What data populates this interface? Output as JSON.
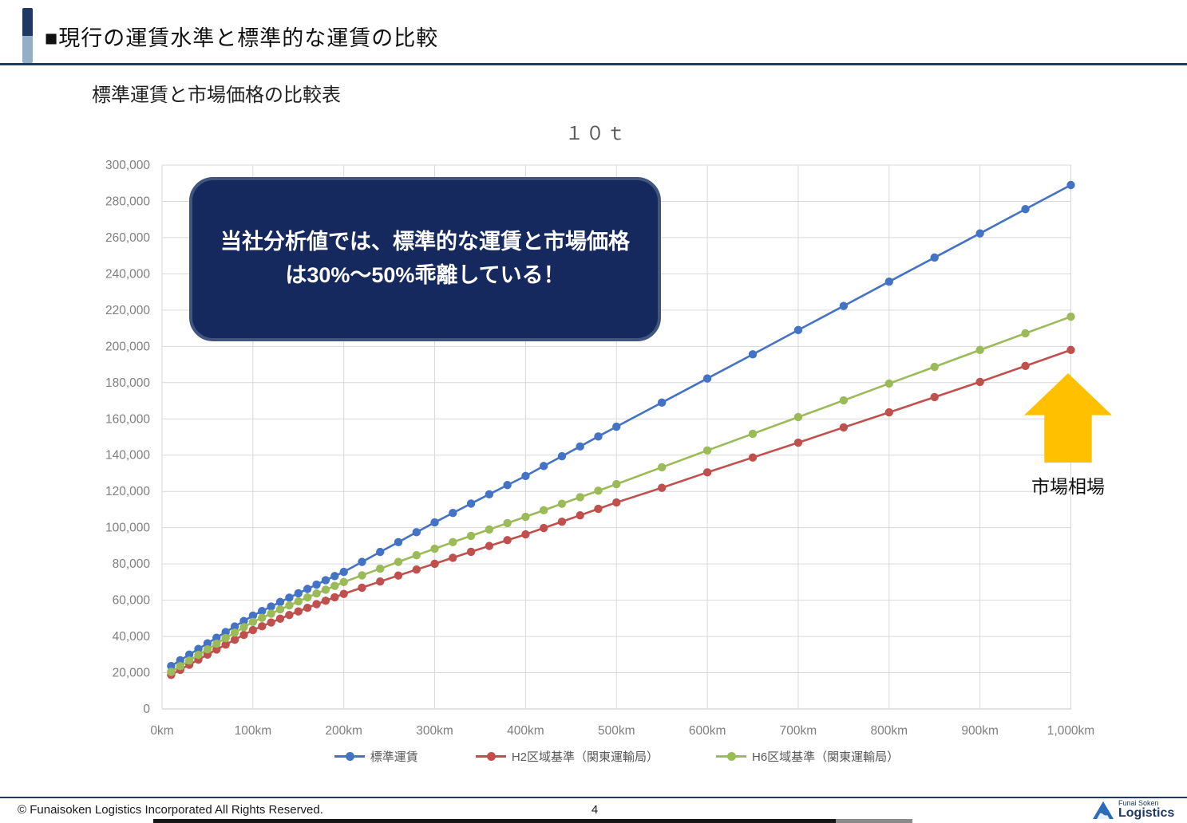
{
  "header": {
    "title": "■現行の運賃水準と標準的な運賃の比較"
  },
  "subtitle": "標準運賃と市場価格の比較表",
  "callout": {
    "text": "当社分析値では、標準的な運賃と市場価格は30%～50%乖離している！"
  },
  "market_label": "市場相場",
  "chart_data": {
    "type": "line",
    "title": "１０ｔ",
    "xlabel": "",
    "ylabel": "",
    "x_unit": "km",
    "ylim": [
      0,
      300000
    ],
    "y_tick_step": 20000,
    "x_ticks": [
      0,
      100,
      200,
      300,
      400,
      500,
      600,
      700,
      800,
      900,
      1000
    ],
    "x_tick_labels": [
      "0km",
      "100km",
      "200km",
      "300km",
      "400km",
      "500km",
      "600km",
      "700km",
      "800km",
      "900km",
      "1,000km"
    ],
    "grid": true,
    "legend_position": "bottom",
    "x": [
      10,
      20,
      30,
      40,
      50,
      60,
      70,
      80,
      90,
      100,
      110,
      120,
      130,
      140,
      150,
      160,
      170,
      180,
      190,
      200,
      220,
      240,
      260,
      280,
      300,
      320,
      340,
      360,
      380,
      400,
      420,
      440,
      460,
      480,
      500,
      550,
      600,
      650,
      700,
      750,
      800,
      850,
      900,
      950,
      1000
    ],
    "series": [
      {
        "name": "標準運賃",
        "color": "#4472C4",
        "values": [
          23650,
          26850,
          30000,
          33100,
          36200,
          39300,
          42400,
          45500,
          48500,
          51500,
          54000,
          56500,
          59000,
          61400,
          63800,
          66200,
          68600,
          71000,
          73300,
          75600,
          81100,
          86600,
          92000,
          97500,
          102900,
          108100,
          113300,
          118400,
          123500,
          128500,
          134000,
          139400,
          144800,
          150300,
          155700,
          169000,
          182300,
          195600,
          209000,
          222300,
          235700,
          249000,
          262300,
          275700,
          289000
        ]
      },
      {
        "name": "H2区域基準（関東運輸局）",
        "color": "#C0504D",
        "values": [
          18800,
          21600,
          24400,
          27200,
          30000,
          32800,
          35500,
          38200,
          40900,
          43500,
          45600,
          47700,
          49800,
          51800,
          53800,
          55800,
          57800,
          59700,
          61600,
          63500,
          66900,
          70300,
          73600,
          76900,
          80100,
          83400,
          86700,
          89900,
          93100,
          96300,
          99800,
          103300,
          106800,
          110400,
          113900,
          122000,
          130500,
          138700,
          146900,
          155300,
          163600,
          172000,
          180400,
          189200,
          198000
        ]
      },
      {
        "name": "H6区域基準（関東運輸局）",
        "color": "#9BBB59",
        "values": [
          20500,
          23600,
          26700,
          29800,
          32900,
          36000,
          39100,
          42100,
          45100,
          48000,
          50300,
          52600,
          54900,
          57100,
          59300,
          61500,
          63700,
          65800,
          67900,
          70000,
          73700,
          77400,
          81100,
          84800,
          88400,
          92000,
          95500,
          99000,
          102500,
          106000,
          109600,
          113200,
          116800,
          120400,
          124000,
          133300,
          142600,
          151800,
          161000,
          170200,
          179500,
          188700,
          198000,
          207200,
          216400
        ]
      }
    ]
  },
  "footer": {
    "copyright": "© Funaisoken Logistics Incorporated All Rights Reserved.",
    "page": "4",
    "logo_top": "Funai Soken",
    "logo_bottom": "Logistics"
  },
  "colors": {
    "header_accent_dark": "#1F3864",
    "header_accent_light": "#94AEC8",
    "callout_fill": "#16295F",
    "callout_border": "#41557E",
    "arrow_orange": "#FFC000",
    "gridline": "#D9D9D9",
    "axis_text": "#7F7F7F"
  }
}
